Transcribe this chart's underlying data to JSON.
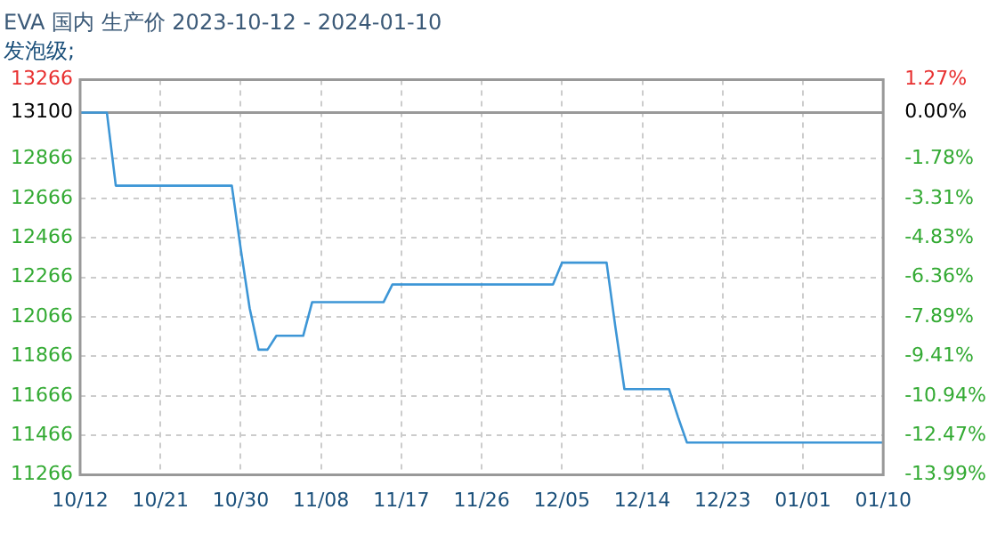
{
  "chart_data": {
    "type": "line",
    "title": "EVA 国内 生产价 2023-10-12 - 2024-01-10",
    "subtitle": "发泡级;",
    "x": [
      "2023-10-12",
      "2023-10-15",
      "2023-10-16",
      "2023-10-29",
      "2023-10-30",
      "2023-10-31",
      "2023-11-01",
      "2023-11-02",
      "2023-11-03",
      "2023-11-06",
      "2023-11-07",
      "2023-11-15",
      "2023-11-16",
      "2023-12-04",
      "2023-12-05",
      "2023-12-10",
      "2023-12-11",
      "2023-12-12",
      "2023-12-17",
      "2023-12-18",
      "2023-12-19",
      "2024-01-10"
    ],
    "series": [
      {
        "color": "#3d96d6",
        "values": [
          13100,
          13100,
          12730,
          12730,
          12410,
          12110,
          11900,
          11900,
          11970,
          11970,
          12140,
          12140,
          12230,
          12230,
          12340,
          12340,
          12010,
          11700,
          11700,
          11560,
          11430,
          11430
        ]
      }
    ],
    "xlim": [
      "2023-10-12",
      "2024-01-10"
    ],
    "xticks": [
      {
        "value": "2023-10-12",
        "label": "10/12"
      },
      {
        "value": "2023-10-21",
        "label": "10/21"
      },
      {
        "value": "2023-10-30",
        "label": "10/30"
      },
      {
        "value": "2023-11-08",
        "label": "11/08"
      },
      {
        "value": "2023-11-17",
        "label": "11/17"
      },
      {
        "value": "2023-11-26",
        "label": "11/26"
      },
      {
        "value": "2023-12-05",
        "label": "12/05"
      },
      {
        "value": "2023-12-14",
        "label": "12/14"
      },
      {
        "value": "2023-12-23",
        "label": "12/23"
      },
      {
        "value": "2024-01-01",
        "label": "01/01"
      },
      {
        "value": "2024-01-10",
        "label": "01/10"
      }
    ],
    "ylim": [
      11266,
      13266
    ],
    "yticks": [
      11266,
      11466,
      11666,
      11866,
      12066,
      12266,
      12466,
      12666,
      12866,
      13100,
      13266
    ],
    "y2lim": [
      -13.99,
      1.27
    ],
    "y2ticks": [
      {
        "value": 1.27,
        "label": "1.27%"
      },
      {
        "value": 0,
        "label": "0.00%"
      },
      {
        "value": -1.78,
        "label": "-1.78%"
      },
      {
        "value": -3.31,
        "label": "-3.31%"
      },
      {
        "value": -4.83,
        "label": "-4.83%"
      },
      {
        "value": -6.36,
        "label": "-6.36%"
      },
      {
        "value": -7.89,
        "label": "-7.89%"
      },
      {
        "value": -9.41,
        "label": "-9.41%"
      },
      {
        "value": -10.94,
        "label": "-10.94%"
      },
      {
        "value": -12.47,
        "label": "-12.47%"
      },
      {
        "value": -13.99,
        "label": "-13.99%"
      }
    ],
    "ref_lines": [
      {
        "axis": "y",
        "value": 13100,
        "color": "#999999"
      }
    ],
    "grid": true,
    "legend": false,
    "marker": "none",
    "line_style": "solid"
  }
}
